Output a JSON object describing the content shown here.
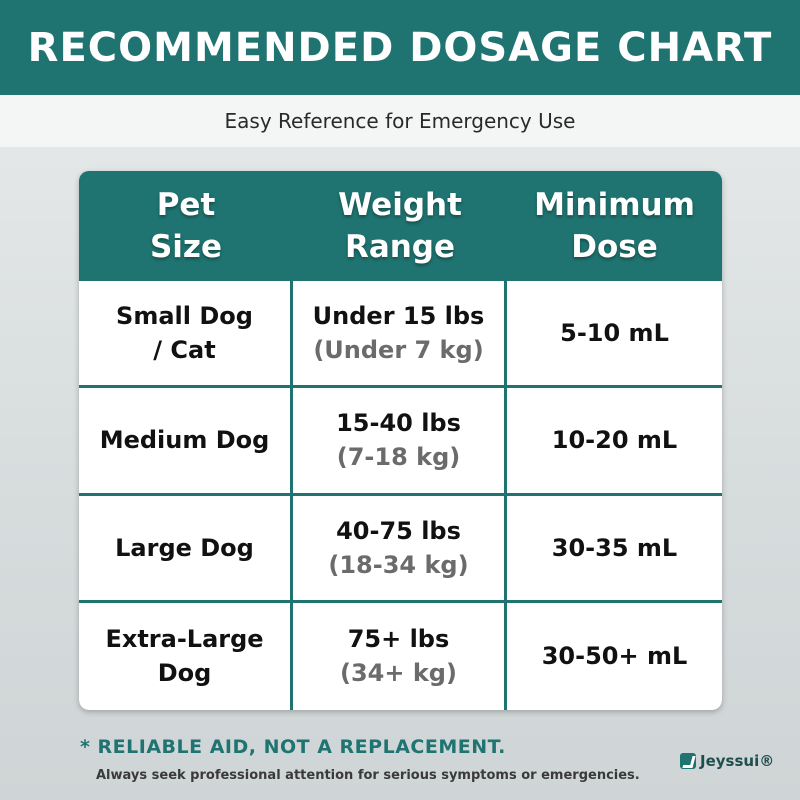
{
  "header": {
    "title": "RECOMMENDED DOSAGE CHART",
    "subtitle": "Easy Reference for Emergency Use"
  },
  "table": {
    "columns": [
      "Pet\nSize",
      "Weight\nRange",
      "Minimum\nDose"
    ],
    "rows": [
      {
        "pet": "Small Dog\n/ Cat",
        "lbs": "Under 15 lbs",
        "kg": "(Under 7 kg)",
        "dose": "5-10 mL"
      },
      {
        "pet": "Medium Dog",
        "lbs": "15-40 lbs",
        "kg": "(7-18 kg)",
        "dose": "10-20 mL"
      },
      {
        "pet": "Large Dog",
        "lbs": "40-75 lbs",
        "kg": "(18-34 kg)",
        "dose": "30-35 mL"
      },
      {
        "pet": "Extra-Large\nDog",
        "lbs": "75+ lbs",
        "kg": "(34+ kg)",
        "dose": "30-50+ mL"
      }
    ]
  },
  "footer": {
    "note": "* RELIABLE AID, NOT A REPLACEMENT.",
    "disclaimer": "Always seek professional attention for serious symptoms or emergencies.",
    "brand": "Jeyssui®"
  },
  "colors": {
    "accent": "#1f7471"
  }
}
